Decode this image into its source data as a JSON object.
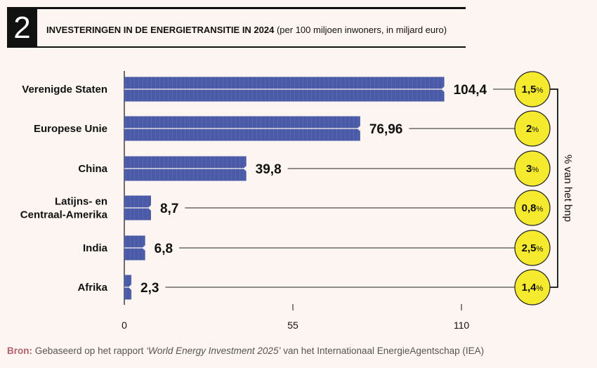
{
  "header": {
    "number": "2",
    "title_bold": "INVESTERINGEN IN DE ENERGIETRANSITIE IN 2024",
    "title_rest": " (per 100 miljoen inwoners, in miljard euro)"
  },
  "chart_data": {
    "type": "bar",
    "orientation": "horizontal",
    "title": "INVESTERINGEN IN DE ENERGIETRANSITIE IN 2024 (per 100 miljoen inwoners, in miljard euro)",
    "categories": [
      [
        "Verenigde Staten"
      ],
      [
        "Europese Unie"
      ],
      [
        "China"
      ],
      [
        "Latijns- en",
        "Centraal-Amerika"
      ],
      [
        "India"
      ],
      [
        "Afrika"
      ]
    ],
    "values": [
      104.4,
      76.96,
      39.8,
      8.7,
      6.8,
      2.3
    ],
    "value_labels": [
      "104,4",
      "76,96",
      "39,8",
      "8,7",
      "6,8",
      "2,3"
    ],
    "gdp_share": [
      "1,5",
      "2",
      "3",
      "0,8",
      "2,5",
      "1,4"
    ],
    "gdp_unit": "%",
    "gdp_axis_label": "% van het bnp",
    "xlim": [
      0,
      110
    ],
    "xticks": [
      "0",
      "55",
      "110"
    ],
    "colors": {
      "bar": "#4a5aa6",
      "circle": "#f6ea2e",
      "circle_border": "#222"
    }
  },
  "source": {
    "label": "Bron:",
    "text1": " Gebaseerd op het rapport ",
    "italic": "‘World Energy Investment 2025’",
    "text2": " van het Internationaal EnergieAgentschap (IEA)"
  }
}
